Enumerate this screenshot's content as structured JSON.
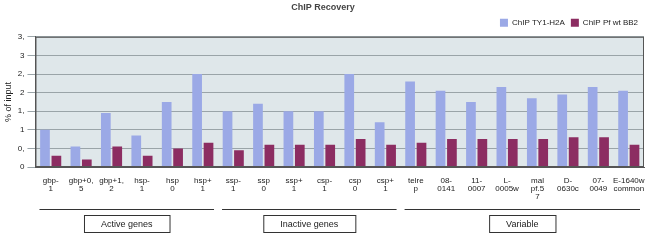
{
  "chart_data": {
    "type": "bar",
    "title": "ChIP Recovery",
    "y_label": "% of input",
    "categories": [
      [
        "gbp-",
        "1"
      ],
      [
        "gbp+0,",
        "5"
      ],
      [
        "gbp+1,",
        "2"
      ],
      [
        "hsp-",
        "1"
      ],
      [
        "hsp",
        "0"
      ],
      [
        "hsp+",
        "1"
      ],
      [
        "ssp-",
        "1"
      ],
      [
        "ssp",
        "0"
      ],
      [
        "ssp+",
        "1"
      ],
      [
        "csp-",
        "1"
      ],
      [
        "csp",
        "0"
      ],
      [
        "csp+",
        "1"
      ],
      [
        "telre",
        "p"
      ],
      [
        "08-",
        "0141"
      ],
      [
        "11-",
        "0007"
      ],
      [
        "L-",
        "0005w"
      ],
      [
        "mal",
        "pf.5",
        "7"
      ],
      [
        "D-",
        "0630c"
      ],
      [
        "07-",
        "0049"
      ],
      [
        "E-1640w",
        "common"
      ]
    ],
    "series": [
      {
        "name": "ChIP TY1-H2A",
        "color": "#9ba9e6",
        "values": [
          1.0,
          0.55,
          1.45,
          0.85,
          1.75,
          2.5,
          1.5,
          1.7,
          1.5,
          1.5,
          2.5,
          1.2,
          2.3,
          2.05,
          1.75,
          2.15,
          1.85,
          1.95,
          2.15,
          2.05
        ]
      },
      {
        "name": "ChIP Pf wt BB2",
        "color": "#8c2d62",
        "values": [
          0.3,
          0.2,
          0.55,
          0.3,
          0.5,
          0.65,
          0.45,
          0.6,
          0.6,
          0.6,
          0.75,
          0.6,
          0.65,
          0.75,
          0.75,
          0.75,
          0.75,
          0.8,
          0.8,
          0.6
        ]
      }
    ],
    "ylim": [
      0,
      3.5
    ],
    "yticks": [
      {
        "value": 0,
        "label": "0"
      },
      {
        "value": 0.5,
        "label": "0,"
      },
      {
        "value": 1,
        "label": "1"
      },
      {
        "value": 1.5,
        "label": "1,"
      },
      {
        "value": 2,
        "label": "2"
      },
      {
        "value": 2.5,
        "label": "2,"
      },
      {
        "value": 3,
        "label": "3"
      },
      {
        "value": 3.5,
        "label": "3,"
      }
    ],
    "grid": true,
    "legend": "top-right",
    "groups": [
      {
        "label": "Active genes",
        "size": 6
      },
      {
        "label": "Inactive genes",
        "size": 6
      },
      {
        "label": "Variable",
        "size": 8
      }
    ]
  }
}
